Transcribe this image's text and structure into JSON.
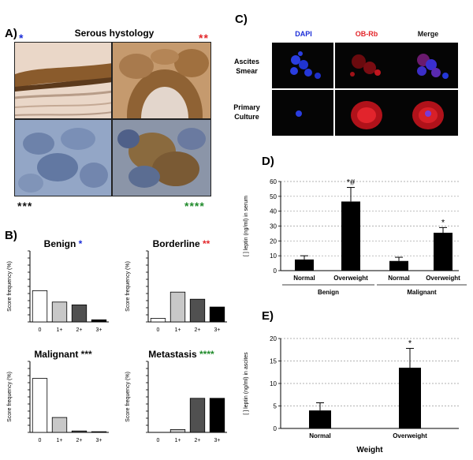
{
  "panels": {
    "a": "A)",
    "b": "B)",
    "c": "C)",
    "d": "D)",
    "e": "E)"
  },
  "histology": {
    "title": "Serous hystology",
    "markers": [
      "*",
      "**",
      "***",
      "****"
    ],
    "marker_colors": [
      "#1b2dd8",
      "#e3262a",
      "#111111",
      "#1f8a2a"
    ]
  },
  "fluorescence": {
    "channels": [
      {
        "label": "DAPI",
        "color": "#1b2dd8"
      },
      {
        "label": "OB-Rb",
        "color": "#e3262a"
      },
      {
        "label": "Merge",
        "color": "#111111"
      }
    ],
    "rows": [
      {
        "line1": "Ascites",
        "line2": "Smear"
      },
      {
        "line1": "Primary",
        "line2": "Culture"
      }
    ]
  },
  "chart_data": [
    {
      "panel": "B)",
      "type": "bar",
      "title": "Benign",
      "marker": "*",
      "marker_color": "#1b2dd8",
      "ylabel": "Score frequency (%)",
      "ylim": [
        0,
        100
      ],
      "yticks": [
        0,
        10,
        20,
        30,
        40,
        50,
        60,
        70,
        80,
        90,
        100
      ],
      "categories": [
        "0",
        "1+",
        "2+",
        "3+"
      ],
      "values": [
        44,
        28,
        24,
        3
      ],
      "fills": [
        "#ffffff",
        "#c8c8c8",
        "#505050",
        "#000000"
      ]
    },
    {
      "panel": "B)",
      "type": "bar",
      "title": "Borderline",
      "marker": "**",
      "marker_color": "#e3262a",
      "ylabel": "Score frequency (%)",
      "ylim": [
        0,
        100
      ],
      "yticks": [
        0,
        10,
        20,
        30,
        40,
        50,
        60,
        70,
        80,
        90,
        100
      ],
      "categories": [
        "0",
        "1+",
        "2+",
        "3+"
      ],
      "values": [
        5,
        42,
        32,
        21
      ],
      "fills": [
        "#ffffff",
        "#c8c8c8",
        "#505050",
        "#000000"
      ]
    },
    {
      "panel": "B)",
      "type": "bar",
      "title": "Malignant",
      "marker": "***",
      "marker_color": "#111111",
      "ylabel": "Score frequency (%)",
      "ylim": [
        0,
        100
      ],
      "yticks": [
        0,
        10,
        20,
        30,
        40,
        50,
        60,
        70,
        80,
        90,
        100
      ],
      "categories": [
        "0",
        "1+",
        "2+",
        "3+"
      ],
      "values": [
        76,
        21,
        2,
        1
      ],
      "fills": [
        "#ffffff",
        "#c8c8c8",
        "#505050",
        "#000000"
      ]
    },
    {
      "panel": "B)",
      "type": "bar",
      "title": "Metastasis",
      "marker": "****",
      "marker_color": "#1f8a2a",
      "ylabel": "Score frequency (%)",
      "ylim": [
        0,
        100
      ],
      "yticks": [
        0,
        10,
        20,
        30,
        40,
        50,
        60,
        70,
        80,
        90,
        100
      ],
      "categories": [
        "0",
        "1+",
        "2+",
        "3+"
      ],
      "values": [
        0,
        4,
        48,
        48
      ],
      "fills": [
        "#ffffff",
        "#c8c8c8",
        "#505050",
        "#000000"
      ]
    },
    {
      "panel": "D)",
      "type": "bar",
      "ylabel": "[ ] leptin (ng/ml) in serum",
      "ylim": [
        0,
        60
      ],
      "yticks": [
        0,
        10,
        20,
        30,
        40,
        50,
        60
      ],
      "grid": true,
      "categories": [
        "Normal",
        "Overweight",
        "Normal",
        "Overweight"
      ],
      "groups": [
        {
          "label": "Benign",
          "members": [
            0,
            1
          ]
        },
        {
          "label": "Malignant",
          "members": [
            2,
            3
          ]
        }
      ],
      "values": [
        7.5,
        46.5,
        6.5,
        25.5
      ],
      "errors": [
        2.5,
        9.5,
        2.5,
        3.5
      ],
      "annotations": [
        "",
        "*#",
        "",
        "*"
      ]
    },
    {
      "panel": "E)",
      "type": "bar",
      "ylabel": "[ ] leptin (ng/ml) in ascites",
      "xlabel": "Weight",
      "ylim": [
        0,
        20
      ],
      "yticks": [
        0,
        5,
        10,
        15,
        20
      ],
      "grid": true,
      "categories": [
        "Normal",
        "Overweight"
      ],
      "values": [
        4,
        13.5
      ],
      "errors": [
        1.7,
        4.3
      ],
      "annotations": [
        "",
        "*"
      ]
    }
  ]
}
